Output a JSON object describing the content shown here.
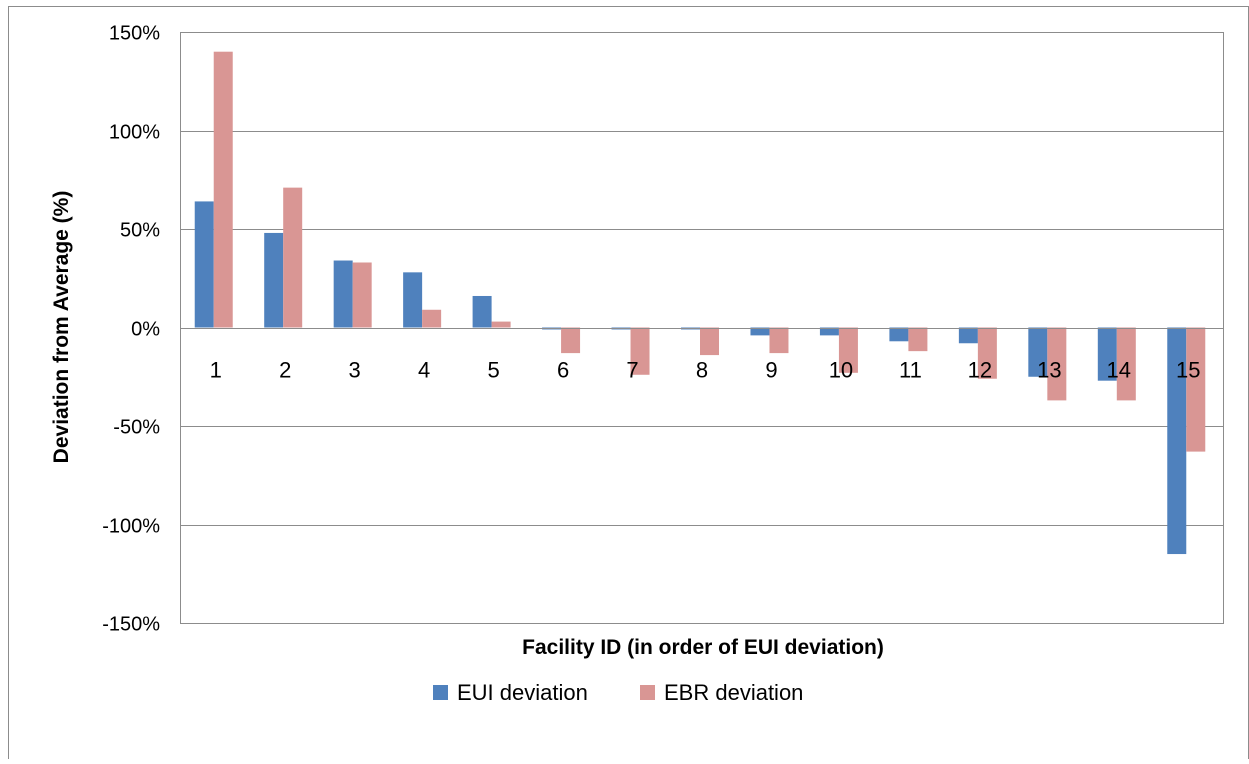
{
  "chart_data": {
    "type": "bar",
    "title": "",
    "xlabel": "Facility ID (in order of EUI deviation)",
    "ylabel": "Deviation from Average (%)",
    "ylim": [
      -150,
      150
    ],
    "y_ticks": [
      "150%",
      "100%",
      "50%",
      "0%",
      "-50%",
      "-100%",
      "-150%"
    ],
    "y_tick_values": [
      150,
      100,
      50,
      0,
      -50,
      -100,
      -150
    ],
    "categories": [
      "1",
      "2",
      "3",
      "4",
      "5",
      "6",
      "7",
      "8",
      "9",
      "10",
      "11",
      "12",
      "13",
      "14",
      "15"
    ],
    "series": [
      {
        "name": "EUI deviation",
        "color": "#4f81bd",
        "values": [
          64,
          48,
          34,
          28,
          16,
          -1,
          -1,
          -1,
          -4,
          -4,
          -7,
          -8,
          -25,
          -27,
          -115
        ]
      },
      {
        "name": "EBR deviation",
        "color": "#d99694",
        "values": [
          140,
          71,
          33,
          9,
          3,
          -13,
          -24,
          -14,
          -13,
          -23,
          -12,
          -26,
          -37,
          -37,
          -63
        ]
      }
    ],
    "grid": true,
    "legend_position": "bottom"
  }
}
